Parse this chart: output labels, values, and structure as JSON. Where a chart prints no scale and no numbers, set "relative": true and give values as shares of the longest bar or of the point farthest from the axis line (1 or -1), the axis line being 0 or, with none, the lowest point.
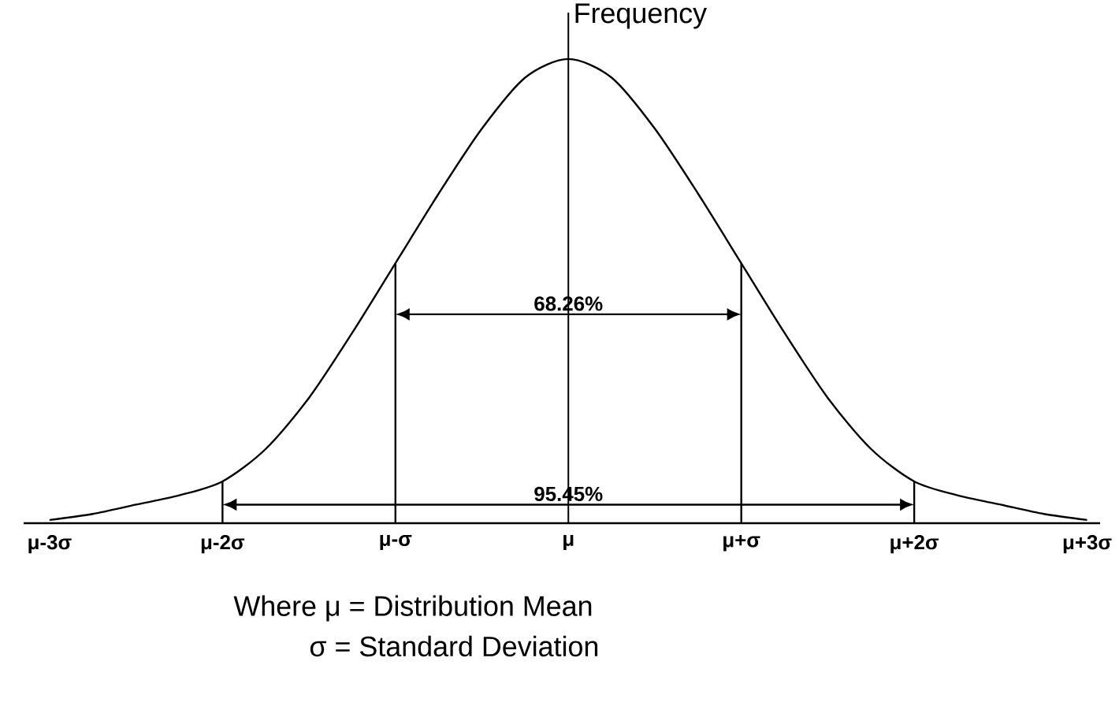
{
  "chart_data": {
    "type": "line",
    "relative": true,
    "ylabel": "Frequency",
    "categories": [
      "μ-3σ",
      null,
      null,
      null,
      "μ-2σ",
      null,
      null,
      null,
      "μ-σ",
      null,
      null,
      null,
      "μ",
      null,
      null,
      null,
      "μ+σ",
      null,
      null,
      null,
      "μ+2σ",
      null,
      null,
      null,
      "μ+3σ"
    ],
    "series": [
      {
        "color": "#000000",
        "values": [
          0.007,
          0.02,
          0.04,
          0.06,
          0.09,
          0.16,
          0.27,
          0.41,
          0.56,
          0.71,
          0.85,
          0.96,
          1,
          0.96,
          0.85,
          0.71,
          0.56,
          0.41,
          0.27,
          0.16,
          0.09,
          0.06,
          0.04,
          0.02,
          0.007
        ]
      }
    ],
    "ref_lines": [
      {
        "axis": "x",
        "value": "μ-σ"
      },
      {
        "axis": "x",
        "value": "μ+σ"
      },
      {
        "axis": "x",
        "value": "μ-2σ"
      },
      {
        "axis": "x",
        "value": "μ+2σ"
      }
    ],
    "marker": "none",
    "line_style": "solid",
    "annotations": [
      "68.26%",
      "95.45%",
      "Where  μ = Distribution Mean",
      "σ = Standard Deviation"
    ]
  }
}
